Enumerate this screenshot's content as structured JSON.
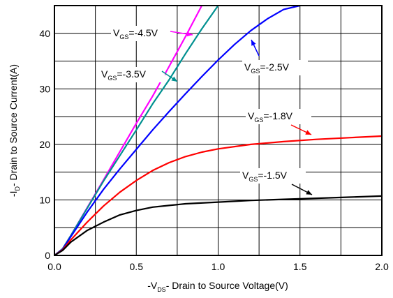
{
  "chart_data": {
    "type": "line",
    "x_axis": {
      "label_pre": "-V",
      "label_sub": "DS",
      "label_post": "- Drain to Source Voltage(V)",
      "min": 0,
      "max": 2,
      "ticks": [
        0,
        0.5,
        1,
        1.5,
        2
      ],
      "tick_labels": [
        "0.0",
        "0.5",
        "1.0",
        "1.5",
        "2.0"
      ]
    },
    "y_axis": {
      "label_pre": "-I",
      "label_sub": "D",
      "label_post": "- Drain to Source Current(A)",
      "min": 0,
      "max": 45,
      "ticks": [
        0,
        10,
        20,
        30,
        40
      ],
      "tick_labels": [
        "0",
        "10",
        "20",
        "30",
        "40"
      ]
    },
    "grid": true,
    "series": [
      {
        "label_pre": "V",
        "label_sub": "GS",
        "label_post": "=-4.5V",
        "color": "#ff00ff",
        "x": [
          0,
          0.05,
          0.1,
          0.2,
          0.3,
          0.4,
          0.5,
          0.6,
          0.7,
          0.8,
          0.9
        ],
        "y": [
          0,
          1.2,
          3.6,
          8.6,
          13.6,
          18.7,
          23.8,
          28.7,
          34.0,
          39.4,
          45.0
        ]
      },
      {
        "label_pre": "V",
        "label_sub": "GS",
        "label_post": "=-3.5V",
        "color": "#009090",
        "x": [
          0,
          0.05,
          0.1,
          0.2,
          0.3,
          0.4,
          0.5,
          0.6,
          0.7,
          0.8,
          0.9,
          1.0
        ],
        "y": [
          0,
          1.2,
          3.6,
          8.5,
          13.4,
          18.0,
          22.6,
          27.3,
          31.6,
          36.3,
          40.8,
          45.0
        ]
      },
      {
        "label_pre": "V",
        "label_sub": "GS",
        "label_post": "=-2.5V",
        "color": "#0000ff",
        "x": [
          0,
          0.05,
          0.1,
          0.2,
          0.3,
          0.4,
          0.5,
          0.6,
          0.7,
          0.8,
          0.9,
          1.0,
          1.1,
          1.2,
          1.3,
          1.4,
          1.5
        ],
        "y": [
          0,
          1.1,
          3.4,
          7.8,
          11.9,
          15.6,
          19.1,
          22.6,
          25.9,
          29.1,
          32.2,
          35.2,
          38.0,
          40.5,
          42.6,
          44.3,
          45.0
        ]
      },
      {
        "label_pre": "V",
        "label_sub": "GS",
        "label_post": "=-1.8V",
        "color": "#ff0000",
        "x": [
          0,
          0.05,
          0.1,
          0.2,
          0.3,
          0.4,
          0.5,
          0.6,
          0.7,
          0.8,
          0.9,
          1.0,
          1.2,
          1.4,
          1.6,
          1.8,
          2.0
        ],
        "y": [
          0,
          1.0,
          2.8,
          6.0,
          8.9,
          11.4,
          13.5,
          15.3,
          16.7,
          17.8,
          18.6,
          19.2,
          20.0,
          20.5,
          20.9,
          21.2,
          21.5
        ]
      },
      {
        "label_pre": "V",
        "label_sub": "GS",
        "label_post": "=-1.5V",
        "color": "#000000",
        "x": [
          0,
          0.05,
          0.1,
          0.2,
          0.3,
          0.4,
          0.5,
          0.6,
          0.7,
          0.8,
          1.0,
          1.2,
          1.4,
          1.6,
          1.8,
          2.0
        ],
        "y": [
          0,
          0.9,
          2.4,
          4.5,
          6.0,
          7.3,
          8.1,
          8.7,
          9.0,
          9.3,
          9.6,
          9.9,
          10.1,
          10.3,
          10.5,
          10.7
        ]
      }
    ]
  }
}
